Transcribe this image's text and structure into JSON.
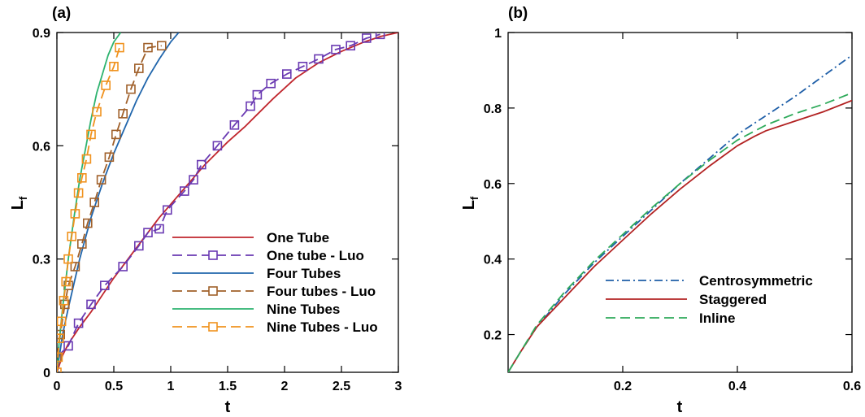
{
  "chart_data": [
    {
      "type": "line",
      "panel_label": "(a)",
      "xlabel": "t",
      "ylabel": "L",
      "ylabel_sub": "f",
      "xlim": [
        0,
        3
      ],
      "ylim": [
        0,
        0.9
      ],
      "xticks": [
        0,
        0.5,
        1,
        1.5,
        2,
        2.5,
        3
      ],
      "xtick_labels": [
        "0",
        "0.5",
        "1",
        "1.5",
        "2",
        "2.5",
        "3"
      ],
      "yticks": [
        0,
        0.3,
        0.6,
        0.9
      ],
      "ytick_labels": [
        "0",
        "0.3",
        "0.6",
        "0.9"
      ],
      "legend_position": "bottom-right",
      "series": [
        {
          "name": "One Tube",
          "color": "#c0262d",
          "style": "solid",
          "marker": "none",
          "x": [
            0,
            0.05,
            0.1,
            0.2,
            0.3,
            0.5,
            0.7,
            0.9,
            1.1,
            1.3,
            1.5,
            1.65,
            1.75,
            1.9,
            2.1,
            2.3,
            2.5,
            2.7,
            2.85,
            3.0
          ],
          "y": [
            0,
            0.045,
            0.075,
            0.12,
            0.16,
            0.25,
            0.33,
            0.41,
            0.48,
            0.55,
            0.61,
            0.65,
            0.68,
            0.725,
            0.78,
            0.82,
            0.85,
            0.875,
            0.89,
            0.9
          ]
        },
        {
          "name": "One tube - Luo",
          "color": "#6a3ab2",
          "style": "dashed",
          "marker": "square",
          "x": [
            0,
            0.1,
            0.19,
            0.3,
            0.42,
            0.58,
            0.72,
            0.8,
            0.9,
            0.97,
            1.12,
            1.2,
            1.27,
            1.41,
            1.56,
            1.7,
            1.76,
            1.88,
            2.02,
            2.16,
            2.3,
            2.45,
            2.58,
            2.72,
            2.84
          ],
          "y": [
            0.04,
            0.07,
            0.13,
            0.18,
            0.23,
            0.28,
            0.335,
            0.37,
            0.38,
            0.43,
            0.48,
            0.51,
            0.55,
            0.6,
            0.655,
            0.705,
            0.735,
            0.765,
            0.79,
            0.81,
            0.83,
            0.855,
            0.865,
            0.885,
            0.895
          ]
        },
        {
          "name": "Four Tubes",
          "color": "#2166ac",
          "style": "solid",
          "marker": "none",
          "x": [
            0,
            0.05,
            0.1,
            0.2,
            0.3,
            0.4,
            0.5,
            0.6,
            0.7,
            0.8,
            0.9,
            1.0,
            1.07
          ],
          "y": [
            0,
            0.1,
            0.17,
            0.3,
            0.41,
            0.5,
            0.58,
            0.65,
            0.72,
            0.78,
            0.83,
            0.875,
            0.9
          ]
        },
        {
          "name": "Four tubes - Luo",
          "color": "#a0602a",
          "style": "dashed",
          "marker": "square",
          "x": [
            0,
            0.03,
            0.07,
            0.1,
            0.16,
            0.22,
            0.27,
            0.33,
            0.39,
            0.46,
            0.52,
            0.58,
            0.65,
            0.72,
            0.8,
            0.92
          ],
          "y": [
            0.04,
            0.1,
            0.18,
            0.23,
            0.28,
            0.34,
            0.395,
            0.45,
            0.51,
            0.57,
            0.63,
            0.685,
            0.75,
            0.805,
            0.86,
            0.865
          ]
        },
        {
          "name": "Nine Tubes",
          "color": "#2db36f",
          "style": "solid",
          "marker": "none",
          "x": [
            0,
            0.02,
            0.05,
            0.1,
            0.15,
            0.2,
            0.25,
            0.3,
            0.35,
            0.4,
            0.45,
            0.5,
            0.56
          ],
          "y": [
            0,
            0.08,
            0.17,
            0.3,
            0.41,
            0.51,
            0.59,
            0.67,
            0.74,
            0.79,
            0.84,
            0.875,
            0.9
          ]
        },
        {
          "name": "Nine Tubes - Luo",
          "color": "#f0921e",
          "style": "dashed",
          "marker": "square",
          "x": [
            0,
            0.01,
            0.02,
            0.04,
            0.06,
            0.08,
            0.1,
            0.13,
            0.16,
            0.19,
            0.22,
            0.26,
            0.3,
            0.35,
            0.43,
            0.5,
            0.55
          ],
          "y": [
            0,
            0.04,
            0.09,
            0.135,
            0.19,
            0.24,
            0.3,
            0.36,
            0.42,
            0.475,
            0.515,
            0.565,
            0.63,
            0.69,
            0.76,
            0.81,
            0.86
          ]
        }
      ]
    },
    {
      "type": "line",
      "panel_label": "(b)",
      "xlabel": "t",
      "ylabel": "L",
      "ylabel_sub": "f",
      "xlim": [
        0,
        0.6
      ],
      "ylim": [
        0.1,
        1.0
      ],
      "xticks": [
        0.2,
        0.4,
        0.6
      ],
      "xtick_labels": [
        "0.2",
        "0.4",
        "0.6"
      ],
      "yticks": [
        0.2,
        0.4,
        0.6,
        0.8,
        1.0
      ],
      "ytick_labels": [
        "0.2",
        "0.4",
        "0.6",
        "0.8",
        "1"
      ],
      "legend_position": "bottom-right",
      "series": [
        {
          "name": "Centrosymmetric",
          "color": "#1f5fa8",
          "style": "dashdot",
          "x": [
            0,
            0.02,
            0.05,
            0.1,
            0.15,
            0.2,
            0.25,
            0.3,
            0.35,
            0.4,
            0.45,
            0.5,
            0.55,
            0.6
          ],
          "y": [
            0.1,
            0.15,
            0.22,
            0.31,
            0.39,
            0.46,
            0.53,
            0.6,
            0.665,
            0.73,
            0.78,
            0.83,
            0.885,
            0.94
          ]
        },
        {
          "name": "Staggered",
          "color": "#b22222",
          "style": "solid",
          "x": [
            0,
            0.02,
            0.05,
            0.1,
            0.15,
            0.2,
            0.25,
            0.3,
            0.35,
            0.4,
            0.43,
            0.45,
            0.5,
            0.55,
            0.6
          ],
          "y": [
            0.1,
            0.15,
            0.22,
            0.3,
            0.38,
            0.45,
            0.52,
            0.585,
            0.645,
            0.7,
            0.725,
            0.74,
            0.765,
            0.79,
            0.82
          ]
        },
        {
          "name": "Inline",
          "color": "#2eaa5a",
          "style": "dashed",
          "x": [
            0,
            0.02,
            0.05,
            0.1,
            0.15,
            0.2,
            0.25,
            0.3,
            0.35,
            0.4,
            0.45,
            0.5,
            0.55,
            0.6
          ],
          "y": [
            0.1,
            0.15,
            0.225,
            0.315,
            0.395,
            0.465,
            0.535,
            0.6,
            0.66,
            0.715,
            0.755,
            0.785,
            0.81,
            0.84
          ]
        }
      ]
    }
  ]
}
